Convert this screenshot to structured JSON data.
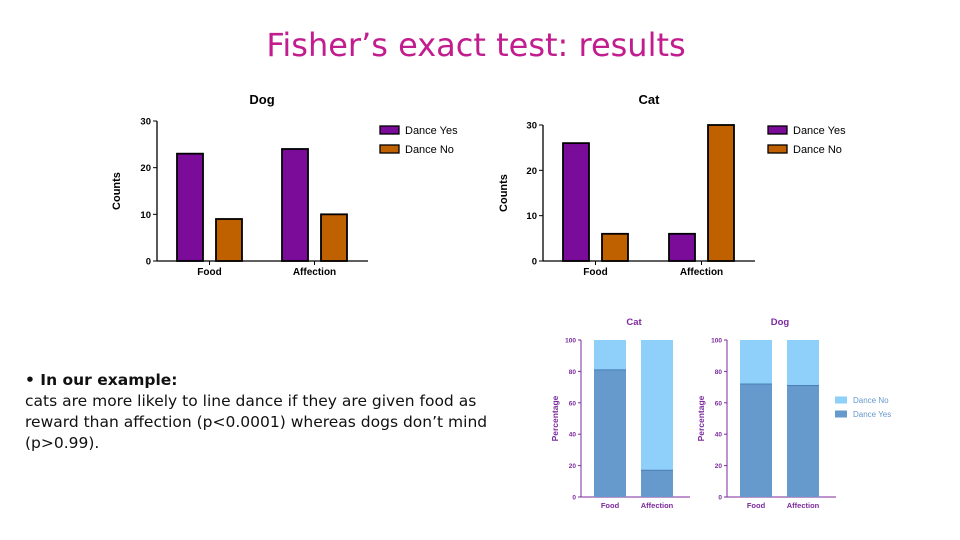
{
  "slide": {
    "title": "Fisher’s exact test: results",
    "bullet_heading": "• In our example:",
    "bullet_text": "cats are more likely to line dance if they are given food as reward than affection (p<0.0001) whereas dogs don’t mind (p>0.99)."
  },
  "colors": {
    "title": "#c21d8f",
    "dance_yes": "#7b0c99",
    "dance_no": "#c06100",
    "pct_no": "#8fd0fa",
    "pct_yes": "#6699cc",
    "pct_axis": "#7b2a9c"
  },
  "chart_data": [
    {
      "type": "bar",
      "title": "Dog",
      "ylabel": "Counts",
      "ylim": [
        0,
        30
      ],
      "yticks": [
        "0",
        "10",
        "20",
        "30"
      ],
      "categories": [
        "Food",
        "Affection"
      ],
      "series": [
        {
          "name": "Dance Yes",
          "values": [
            23,
            24
          ]
        },
        {
          "name": "Dance No",
          "values": [
            9,
            10
          ]
        }
      ],
      "legend": "top-right"
    },
    {
      "type": "bar",
      "title": "Cat",
      "ylabel": "Counts",
      "ylim": [
        0,
        30
      ],
      "yticks": [
        "0",
        "10",
        "20",
        "30"
      ],
      "categories": [
        "Food",
        "Affection"
      ],
      "series": [
        {
          "name": "Dance Yes",
          "values": [
            26,
            6
          ]
        },
        {
          "name": "Dance No",
          "values": [
            6,
            30
          ]
        }
      ],
      "legend": "top-right"
    },
    {
      "type": "bar",
      "stacked": true,
      "title": "Cat",
      "ylabel": "Percentage",
      "ylim": [
        0,
        100
      ],
      "yticks": [
        "0",
        "20",
        "40",
        "60",
        "80",
        "100"
      ],
      "categories": [
        "Food",
        "Affection"
      ],
      "series": [
        {
          "name": "Dance Yes",
          "values": [
            81,
            17
          ]
        },
        {
          "name": "Dance No",
          "values": [
            19,
            83
          ]
        }
      ]
    },
    {
      "type": "bar",
      "stacked": true,
      "title": "Dog",
      "ylabel": "Percentage",
      "ylim": [
        0,
        100
      ],
      "yticks": [
        "0",
        "20",
        "40",
        "60",
        "80",
        "100"
      ],
      "categories": [
        "Food",
        "Affection"
      ],
      "series": [
        {
          "name": "Dance Yes",
          "values": [
            72,
            71
          ]
        },
        {
          "name": "Dance No",
          "values": [
            28,
            29
          ]
        }
      ],
      "legend_entries": [
        "Dance No",
        "Dance Yes"
      ],
      "legend": "right"
    }
  ]
}
